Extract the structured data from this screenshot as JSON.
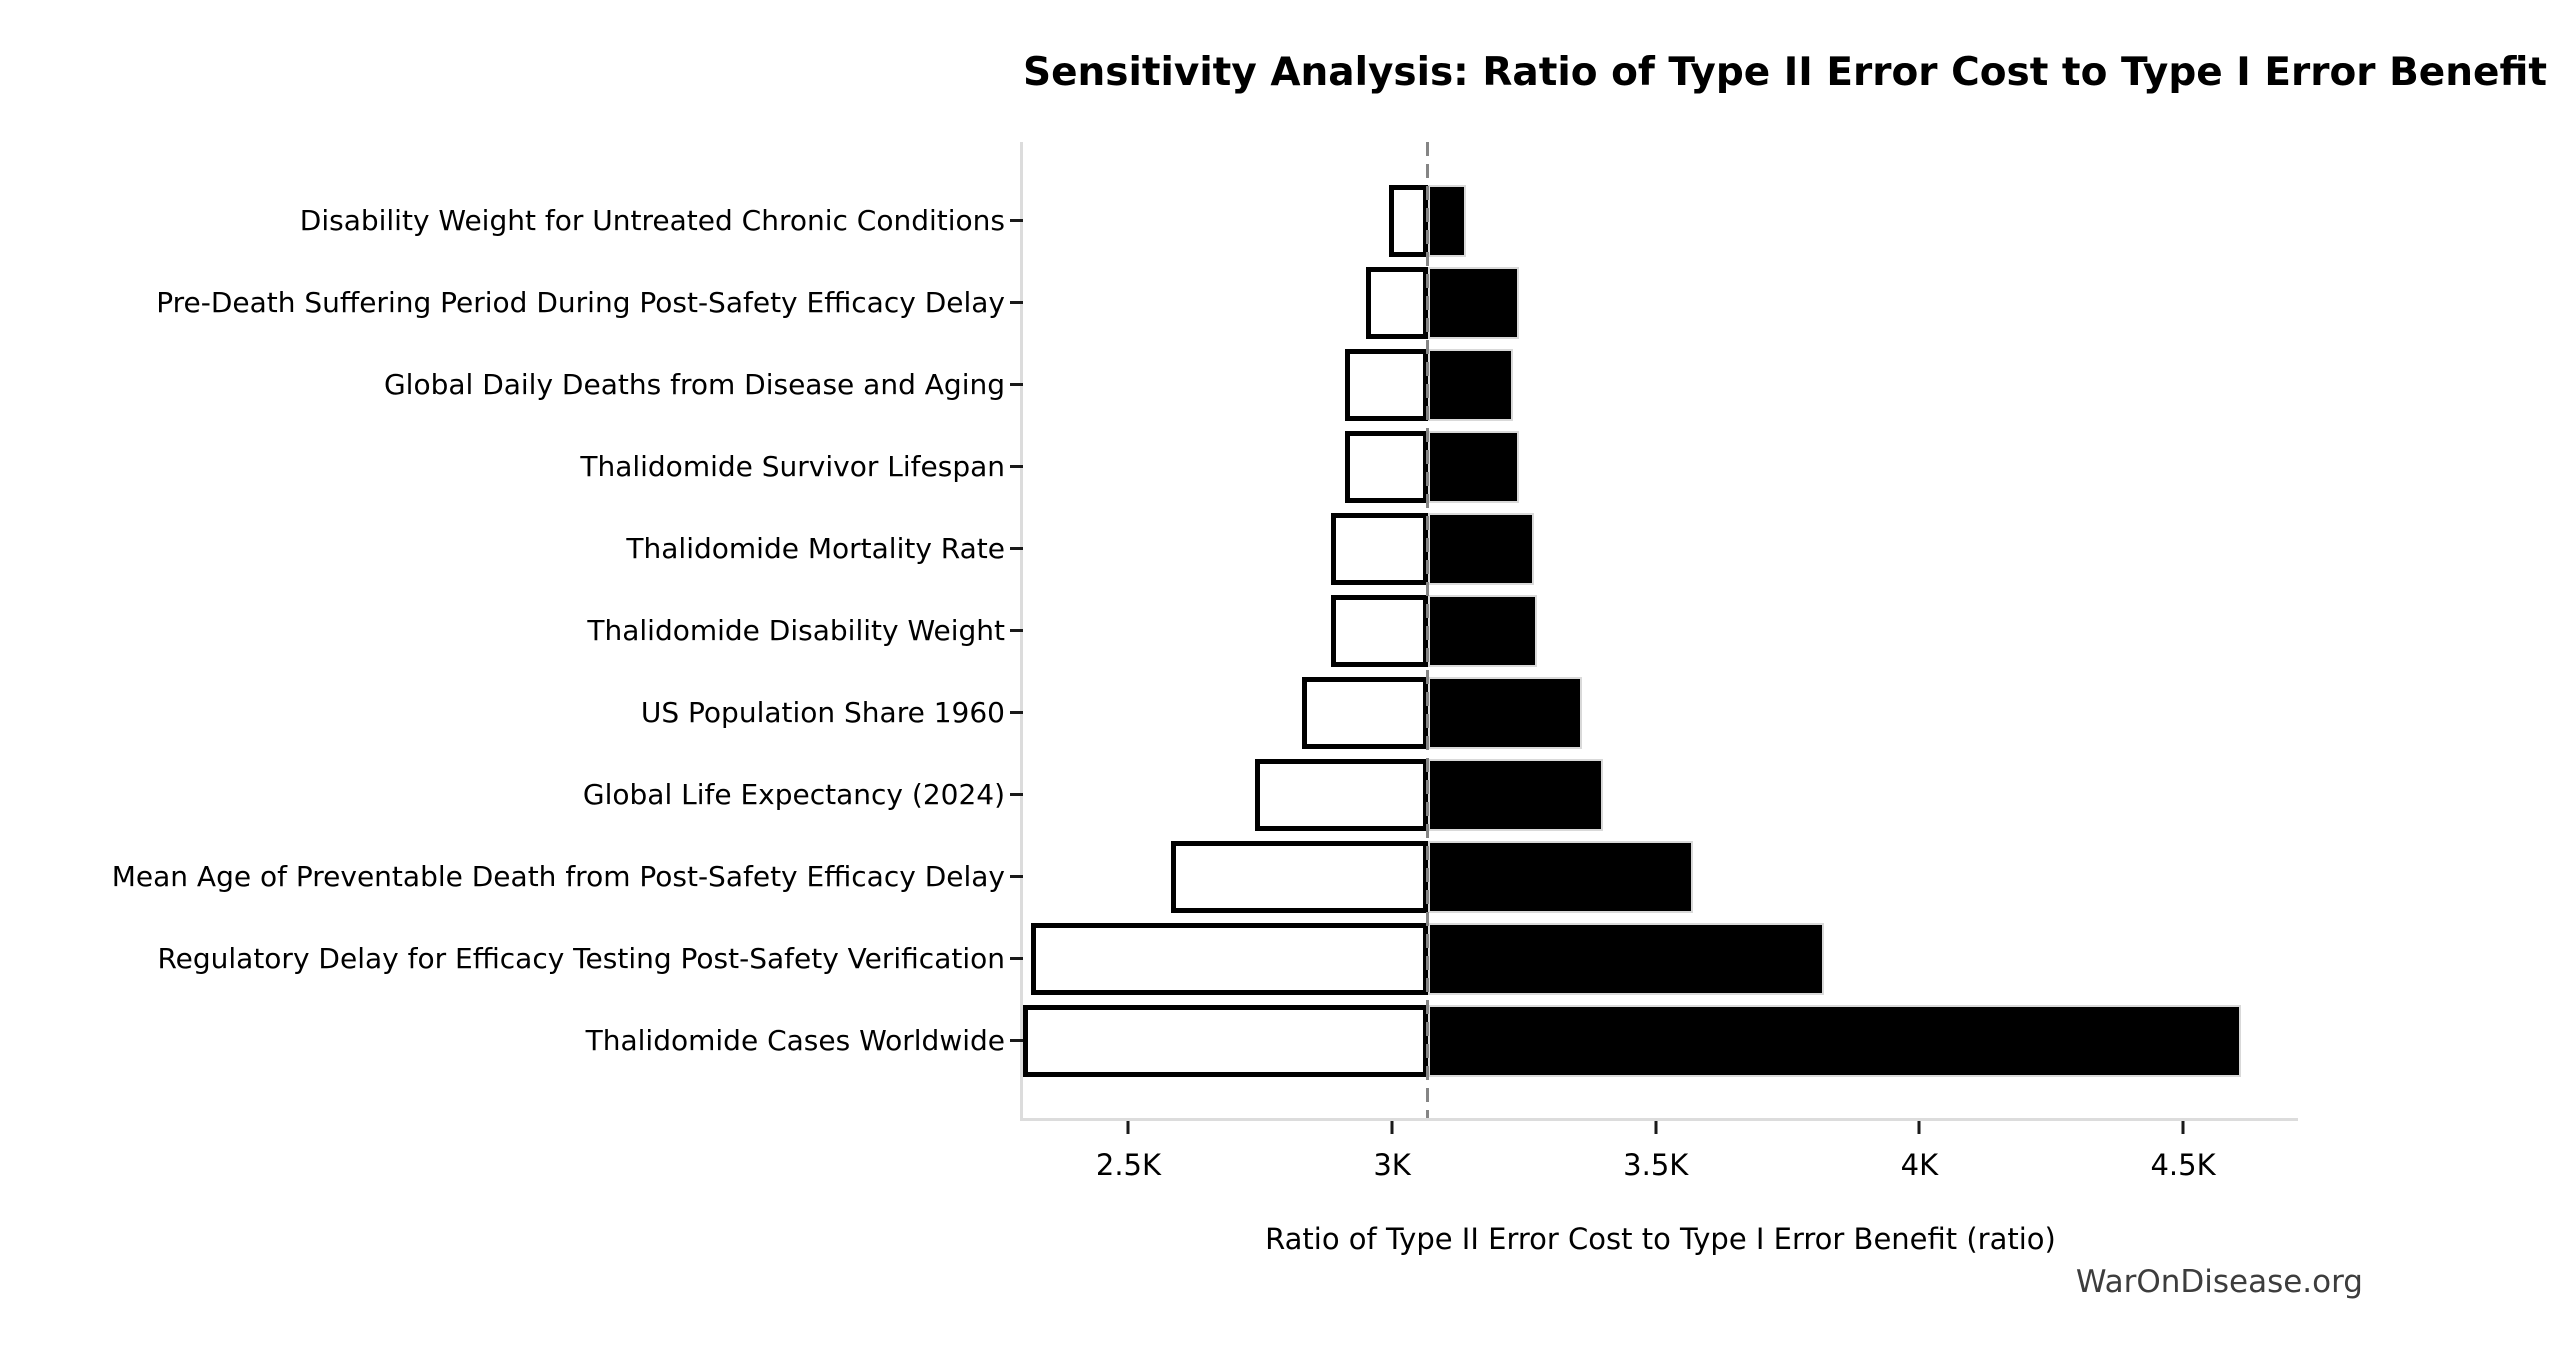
{
  "title": "Sensitivity Analysis: Ratio of Type II Error Cost to Type I Error Benefit",
  "watermark": "WarOnDisease.org",
  "chart_data": {
    "type": "bar",
    "subtype": "tornado-sensitivity",
    "orientation": "horizontal",
    "title": "Sensitivity Analysis: Ratio of Type II Error Cost to Type I Error Benefit",
    "xlabel": "Ratio of Type II Error Cost to Type I Error Benefit (ratio)",
    "ylabel": "",
    "grid": false,
    "legend": false,
    "xlim": [
      2300,
      4718
    ],
    "baseline_value": 3068,
    "x_ticks": [
      {
        "value": 2500,
        "label": "2.5K"
      },
      {
        "value": 3000,
        "label": "3K"
      },
      {
        "value": 3500,
        "label": "3.5K"
      },
      {
        "value": 4000,
        "label": "4K"
      },
      {
        "value": 4500,
        "label": "4.5K"
      }
    ],
    "categories": [
      "Disability Weight for Untreated Chronic Conditions",
      "Pre-Death Suffering Period During Post-Safety Efficacy Delay",
      "Global Daily Deaths from Disease and Aging",
      "Thalidomide Survivor Lifespan",
      "Thalidomide Mortality Rate",
      "Thalidomide Disability Weight",
      "US Population Share 1960",
      "Global Life Expectancy (2024)",
      "Mean Age of Preventable Death from Post-Safety Efficacy Delay",
      "Regulatory Delay for Efficacy Testing Post-Safety Verification",
      "Thalidomide Cases Worldwide"
    ],
    "series": [
      {
        "name": "low",
        "fill": "#ffffff",
        "edge": "#000000",
        "values": [
          2995,
          2950,
          2910,
          2910,
          2885,
          2885,
          2830,
          2740,
          2580,
          2315,
          2300
        ]
      },
      {
        "name": "high",
        "fill": "#000000",
        "edge": "#d9d9d9",
        "values": [
          3140,
          3240,
          3230,
          3240,
          3270,
          3275,
          3360,
          3400,
          3570,
          3820,
          4610
        ]
      }
    ],
    "colors": {
      "bar_high_fill": "#000000",
      "bar_low_fill": "#ffffff",
      "bar_low_edge": "#000000",
      "baseline_dash": "#858585",
      "spine": "#dcdcdc",
      "tick": "#1a1a1a",
      "text": "#000000",
      "watermark_text": "#3d3d3d"
    }
  }
}
